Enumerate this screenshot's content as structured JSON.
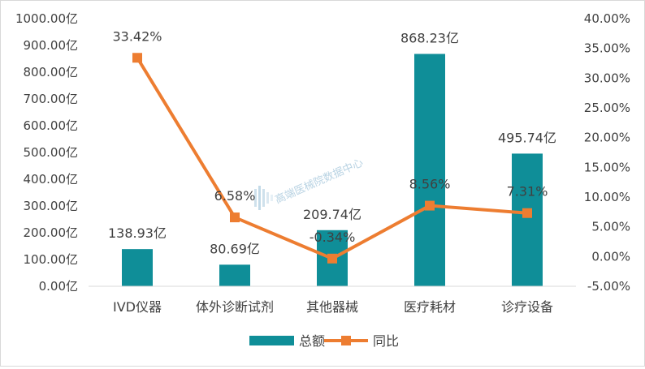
{
  "chart_data": {
    "type": "bar",
    "categories": [
      "IVD仪器",
      "体外诊断试剂",
      "其他器械",
      "医疗耗材",
      "诊疗设备"
    ],
    "series": [
      {
        "name": "总额",
        "kind": "bar",
        "axis": "left",
        "color": "#0F8E98",
        "values": [
          138.93,
          80.69,
          209.74,
          868.23,
          495.74
        ],
        "labels": [
          "138.93亿",
          "80.69亿",
          "209.74亿",
          "868.23亿",
          "495.74亿"
        ]
      },
      {
        "name": "同比",
        "kind": "line",
        "axis": "right",
        "color": "#ED7D31",
        "values": [
          33.42,
          6.58,
          -0.34,
          8.56,
          7.31
        ],
        "labels": [
          "33.42%",
          "6.58%",
          "-0.34%",
          "8.56%",
          "7.31%"
        ]
      }
    ],
    "ylim": [
      0,
      1000
    ],
    "y_ticks": [
      "0.00亿",
      "100.00亿",
      "200.00亿",
      "300.00亿",
      "400.00亿",
      "500.00亿",
      "600.00亿",
      "700.00亿",
      "800.00亿",
      "900.00亿",
      "1000.00亿"
    ],
    "y2lim": [
      -5,
      40
    ],
    "y2_ticks": [
      "-5.00%",
      "0.00%",
      "5.00%",
      "10.00%",
      "15.00%",
      "20.00%",
      "25.00%",
      "30.00%",
      "35.00%",
      "40.00%"
    ],
    "grid": false,
    "legend": "bottom",
    "watermark": "高端医械院数据中心"
  }
}
